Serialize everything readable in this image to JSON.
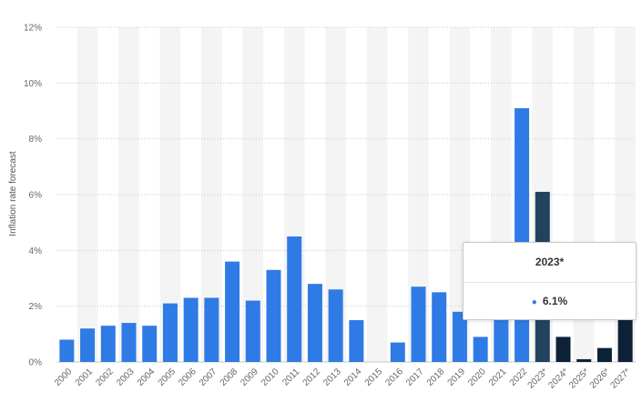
{
  "chart_data": {
    "type": "bar",
    "ylabel": "Inflation rate forecast",
    "ylim": [
      0,
      12
    ],
    "yticks": [
      0,
      2,
      4,
      6,
      8,
      10,
      12
    ],
    "ytick_labels": [
      "0%",
      "2%",
      "4%",
      "6%",
      "8%",
      "10%",
      "12%"
    ],
    "categories": [
      "2000",
      "2001",
      "2002",
      "2003",
      "2004",
      "2005",
      "2006",
      "2007",
      "2008",
      "2009",
      "2010",
      "2011",
      "2012",
      "2013",
      "2014",
      "2015",
      "2016",
      "2017",
      "2018",
      "2019",
      "2020",
      "2021",
      "2022",
      "2023*",
      "2024*",
      "2025*",
      "2026*",
      "2027*"
    ],
    "values": [
      0.8,
      1.2,
      1.3,
      1.4,
      1.3,
      2.1,
      2.3,
      2.3,
      3.6,
      2.2,
      3.3,
      4.5,
      2.8,
      2.6,
      1.5,
      0.0,
      0.7,
      2.7,
      2.5,
      1.8,
      0.9,
      2.1,
      9.1,
      6.1,
      0.9,
      0.1,
      0.5,
      1.6
    ],
    "colors": {
      "actual": "#2f7be5",
      "highlight": "#22435e",
      "forecast": "#0d2239",
      "band": "#f4f4f4",
      "grid": "#c8c8c8"
    },
    "grid": true
  },
  "tooltip": {
    "title": "2023*",
    "value": "6.1%"
  }
}
